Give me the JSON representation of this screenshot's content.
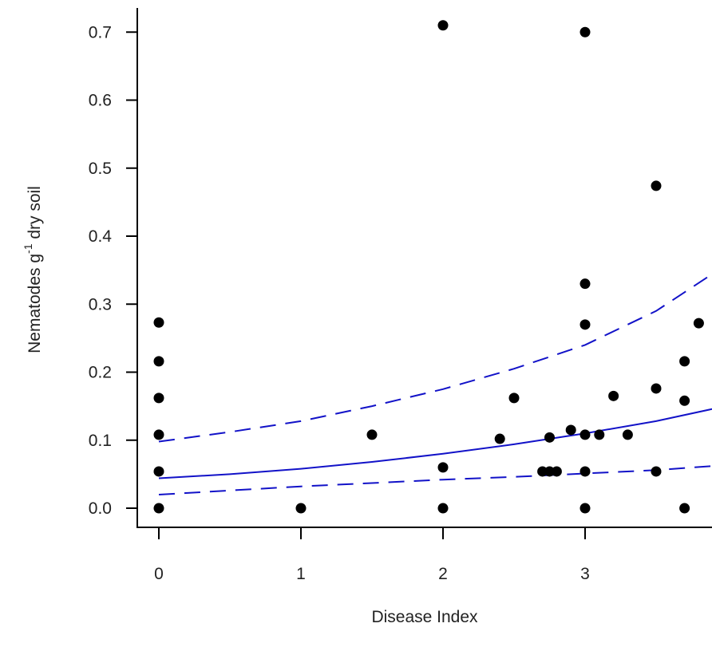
{
  "chart_data": {
    "type": "scatter",
    "title": "",
    "xlabel": "Disease Index",
    "ylabel": {
      "prefix": "Nematodes g",
      "superscript": "-1",
      "suffix": " dry soil"
    },
    "xlim": [
      -0.15,
      3.9
    ],
    "ylim": [
      -0.028,
      0.74
    ],
    "xticks": [
      0,
      1,
      2,
      3
    ],
    "xtick_labels": [
      "0",
      "1",
      "2",
      "3"
    ],
    "yticks": [
      0.0,
      0.1,
      0.2,
      0.3,
      0.4,
      0.5,
      0.6,
      0.7
    ],
    "ytick_labels": [
      "0.0",
      "0.1",
      "0.2",
      "0.3",
      "0.4",
      "0.5",
      "0.6",
      "0.7"
    ],
    "grid": false,
    "colors": {
      "points": "#000000",
      "fit": "#1212c8",
      "axis": "#000000"
    },
    "points": [
      {
        "x": 0,
        "y": 0.0
      },
      {
        "x": 0,
        "y": 0.054
      },
      {
        "x": 0,
        "y": 0.108
      },
      {
        "x": 0,
        "y": 0.162
      },
      {
        "x": 0,
        "y": 0.216
      },
      {
        "x": 0,
        "y": 0.273
      },
      {
        "x": 1,
        "y": 0.0
      },
      {
        "x": 1.5,
        "y": 0.108
      },
      {
        "x": 2,
        "y": 0.0
      },
      {
        "x": 2,
        "y": 0.06
      },
      {
        "x": 2,
        "y": 0.71
      },
      {
        "x": 2.4,
        "y": 0.102
      },
      {
        "x": 2.5,
        "y": 0.162
      },
      {
        "x": 2.7,
        "y": 0.054
      },
      {
        "x": 2.75,
        "y": 0.054
      },
      {
        "x": 2.75,
        "y": 0.104
      },
      {
        "x": 2.8,
        "y": 0.054
      },
      {
        "x": 2.9,
        "y": 0.115
      },
      {
        "x": 3,
        "y": 0.0
      },
      {
        "x": 3,
        "y": 0.054
      },
      {
        "x": 3,
        "y": 0.108
      },
      {
        "x": 3,
        "y": 0.27
      },
      {
        "x": 3,
        "y": 0.33
      },
      {
        "x": 3,
        "y": 0.7
      },
      {
        "x": 3.1,
        "y": 0.108
      },
      {
        "x": 3.2,
        "y": 0.165
      },
      {
        "x": 3.3,
        "y": 0.108
      },
      {
        "x": 3.5,
        "y": 0.054
      },
      {
        "x": 3.5,
        "y": 0.176
      },
      {
        "x": 3.5,
        "y": 0.474
      },
      {
        "x": 3.7,
        "y": 0.0
      },
      {
        "x": 3.7,
        "y": 0.158
      },
      {
        "x": 3.7,
        "y": 0.216
      },
      {
        "x": 3.8,
        "y": 0.272
      }
    ],
    "lines": [
      {
        "role": "fit",
        "style": "solid",
        "x": [
          0,
          0.5,
          1,
          1.5,
          2,
          2.5,
          3,
          3.5,
          3.9
        ],
        "y": [
          0.044,
          0.05,
          0.058,
          0.068,
          0.08,
          0.094,
          0.11,
          0.128,
          0.146
        ]
      },
      {
        "role": "upper-ci",
        "style": "dashed",
        "x": [
          0,
          0.5,
          1,
          1.5,
          2,
          2.5,
          3,
          3.5,
          3.9
        ],
        "y": [
          0.098,
          0.112,
          0.128,
          0.15,
          0.175,
          0.205,
          0.24,
          0.29,
          0.345
        ]
      },
      {
        "role": "lower-ci",
        "style": "dashed",
        "x": [
          0,
          0.5,
          1,
          1.5,
          2,
          2.5,
          3,
          3.5,
          3.9
        ],
        "y": [
          0.02,
          0.026,
          0.032,
          0.037,
          0.042,
          0.046,
          0.051,
          0.056,
          0.062
        ]
      }
    ]
  }
}
